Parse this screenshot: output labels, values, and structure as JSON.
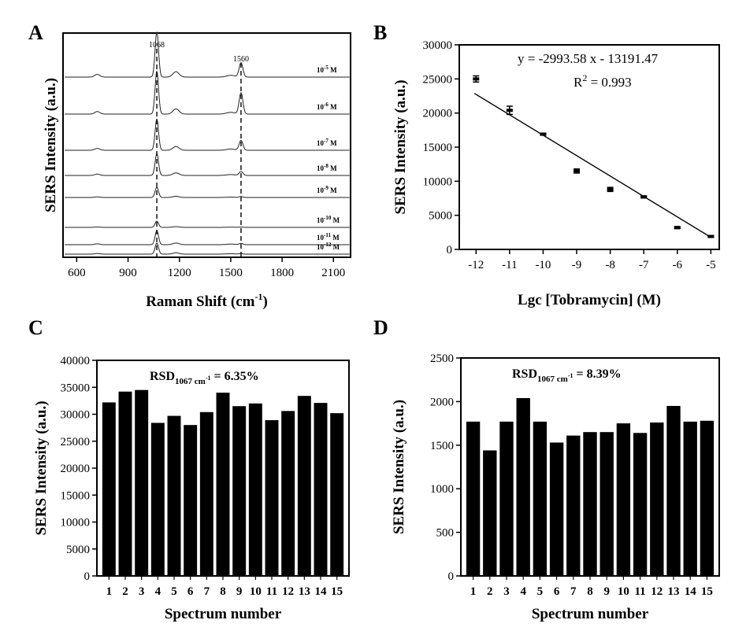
{
  "chart_data": [
    {
      "panel": "A",
      "type": "line",
      "xlabel_main": "Raman Shift (cm",
      "xlabel_sup": "-1",
      "xlabel_end": ")",
      "ylabel": "SERS Intensity (a.u.)",
      "xlim": [
        520,
        2200
      ],
      "xticks": [
        "600",
        "900",
        "1200",
        "1500",
        "1800",
        "2100"
      ],
      "xtick_values": [
        600,
        900,
        1200,
        1500,
        1800,
        2100
      ],
      "peaks": [
        {
          "label": "1068",
          "x": 1068
        },
        {
          "label": "1560",
          "x": 1560
        }
      ],
      "series": [
        {
          "name_base": "10",
          "name_exp": "-5",
          "name_unit": " M",
          "peak1068": 1.0,
          "peak1560": 0.35
        },
        {
          "name_base": "10",
          "name_exp": "-6",
          "name_unit": " M",
          "peak1068": 1.0,
          "peak1560": 0.55
        },
        {
          "name_base": "10",
          "name_exp": "-7",
          "name_unit": " M",
          "peak1068": 0.85,
          "peak1560": 0.35
        },
        {
          "name_base": "10",
          "name_exp": "-8",
          "name_unit": " M",
          "peak1068": 0.65,
          "peak1560": 0.2
        },
        {
          "name_base": "10",
          "name_exp": "-9",
          "name_unit": " M",
          "peak1068": 0.3,
          "peak1560": 0.1
        },
        {
          "name_base": "10",
          "name_exp": "-10",
          "name_unit": " M",
          "peak1068": 0.2,
          "peak1560": 0.05
        },
        {
          "name_base": "10",
          "name_exp": "-11",
          "name_unit": " M",
          "peak1068": 0.45,
          "peak1560": 0.1
        },
        {
          "name_base": "10",
          "name_exp": "-12",
          "name_unit": " M",
          "peak1068": 0.35,
          "peak1560": 0.05
        }
      ]
    },
    {
      "panel": "B",
      "type": "scatter",
      "xlabel": "Lgc [Tobramycin] (M)",
      "ylabel": "SERS Intensity (a.u.)",
      "xlim": [
        -12.5,
        -4.75
      ],
      "ylim": [
        0,
        30000
      ],
      "xticks": [
        -12,
        -11,
        -10,
        -9,
        -8,
        -7,
        -6,
        -5
      ],
      "yticks": [
        0,
        5000,
        10000,
        15000,
        20000,
        25000,
        30000
      ],
      "x": [
        -12,
        -11,
        -10,
        -9,
        -8,
        -7,
        -6,
        -5
      ],
      "y": [
        25000,
        20400,
        16900,
        11500,
        8800,
        7700,
        3200,
        1900
      ],
      "error": [
        450,
        600,
        150,
        300,
        300,
        150,
        150,
        100
      ],
      "fit": {
        "slope": -2993.58,
        "intercept": -13191.47,
        "x_range": [
          -12,
          -5
        ]
      },
      "equation": "y = -2993.58 x - 13191.47",
      "r2_main": "R",
      "r2_sup": "2",
      "r2_value": " = 0.993"
    },
    {
      "panel": "C",
      "type": "bar",
      "xlabel": "Spectrum number",
      "ylabel": "SERS Intensity (a.u.)",
      "ylim": [
        0,
        40000
      ],
      "yticks": [
        0,
        5000,
        10000,
        15000,
        20000,
        25000,
        30000,
        35000,
        40000
      ],
      "categories": [
        "1",
        "2",
        "3",
        "4",
        "5",
        "6",
        "7",
        "8",
        "9",
        "10",
        "11",
        "12",
        "13",
        "14",
        "15"
      ],
      "values": [
        32200,
        34200,
        34500,
        28400,
        29700,
        28000,
        30400,
        34000,
        31500,
        32000,
        28900,
        30600,
        33400,
        32100,
        30200
      ],
      "rsd_main": "RSD",
      "rsd_sub": "1067 cm",
      "rsd_subsup": "-1",
      "rsd_value": " = 6.35%"
    },
    {
      "panel": "D",
      "type": "bar",
      "xlabel": "Spectrum number",
      "ylabel": "SERS Intensity (a.u.)",
      "ylim": [
        0,
        2500
      ],
      "yticks": [
        0,
        500,
        1000,
        1500,
        2000,
        2500
      ],
      "categories": [
        "1",
        "2",
        "3",
        "4",
        "5",
        "6",
        "7",
        "8",
        "9",
        "10",
        "11",
        "12",
        "13",
        "14",
        "15"
      ],
      "values": [
        1770,
        1440,
        1770,
        2040,
        1770,
        1530,
        1610,
        1650,
        1650,
        1750,
        1640,
        1760,
        1950,
        1770,
        1780
      ],
      "rsd_main": "RSD",
      "rsd_sub": "1067 cm",
      "rsd_subsup": "-1",
      "rsd_value": " = 8.39%"
    }
  ],
  "panel_labels": {
    "a": "A",
    "b": "B",
    "c": "C",
    "d": "D"
  }
}
